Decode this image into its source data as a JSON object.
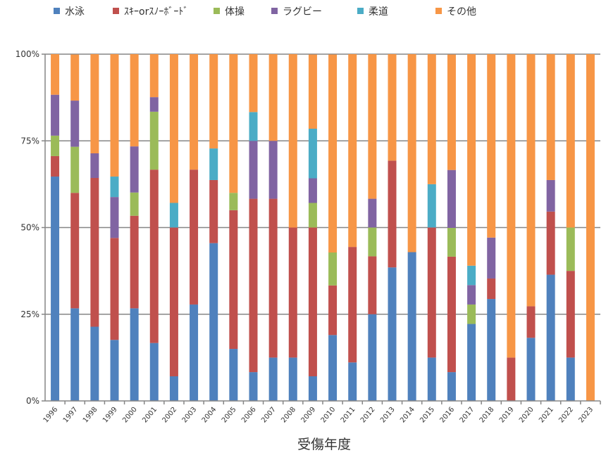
{
  "chart_data": {
    "type": "bar",
    "stacked": true,
    "normalized": true,
    "title": "",
    "xlabel": "受傷年度",
    "ylabel": "",
    "ylim": [
      0,
      100
    ],
    "yticks": [
      "0%",
      "25%",
      "50%",
      "75%",
      "100%"
    ],
    "grid": true,
    "legend_position": "top",
    "categories": [
      "1996",
      "1997",
      "1998",
      "1999",
      "2000",
      "2001",
      "2002",
      "2003",
      "2004",
      "2005",
      "2006",
      "2007",
      "2008",
      "2009",
      "2010",
      "2011",
      "2012",
      "2013",
      "2014",
      "2015",
      "2016",
      "2017",
      "2018",
      "2019",
      "2020",
      "2021",
      "2022",
      "2023"
    ],
    "series": [
      {
        "name": "水泳",
        "color": "#4F81BD",
        "values": [
          64.7,
          26.7,
          21.4,
          17.6,
          26.7,
          16.7,
          7.1,
          27.8,
          45.5,
          15,
          8.3,
          12.5,
          12.5,
          7.1,
          19,
          11.1,
          25,
          38.5,
          42.9,
          12.5,
          8.3,
          22.2,
          29.4,
          0,
          18.2,
          36.4,
          12.5,
          0
        ]
      },
      {
        "name": "ｽｷｰorｽﾉｰﾎﾞｰﾄﾞ",
        "color": "#C0504D",
        "values": [
          5.9,
          33.3,
          42.9,
          29.4,
          26.7,
          50,
          42.9,
          38.9,
          18.2,
          40,
          50,
          45.8,
          37.5,
          42.9,
          14.3,
          33.3,
          16.7,
          30.8,
          0,
          37.5,
          33.3,
          0,
          5.9,
          12.5,
          9.1,
          18.2,
          25,
          0
        ]
      },
      {
        "name": "体操",
        "color": "#9BBB59",
        "values": [
          5.9,
          13.3,
          0,
          0,
          6.7,
          16.7,
          0,
          0,
          0,
          5,
          0,
          0,
          0,
          7.1,
          9.5,
          0,
          8.3,
          0,
          0,
          0,
          8.3,
          5.6,
          0,
          0,
          0,
          0,
          12.5,
          0
        ]
      },
      {
        "name": "ラグビー",
        "color": "#8064A2",
        "values": [
          11.8,
          13.3,
          7.1,
          11.8,
          13.3,
          4.2,
          0,
          0,
          0,
          0,
          16.7,
          16.7,
          0,
          7.1,
          0,
          0,
          8.3,
          0,
          0,
          0,
          16.7,
          5.6,
          11.8,
          0,
          0,
          9.1,
          0,
          0
        ]
      },
      {
        "name": "柔道",
        "color": "#4BACC6",
        "values": [
          0,
          0,
          0,
          5.9,
          0,
          0,
          7.1,
          0,
          9.1,
          0,
          8.3,
          0,
          0,
          14.3,
          0,
          0,
          0,
          0,
          0,
          12.5,
          0,
          5.6,
          0,
          0,
          0,
          0,
          0,
          0
        ]
      },
      {
        "name": "その他",
        "color": "#F79646",
        "values": [
          11.8,
          13.3,
          28.6,
          35.3,
          26.7,
          12.5,
          42.9,
          33.3,
          27.3,
          40,
          16.7,
          25,
          50,
          21.4,
          57.1,
          55.6,
          41.7,
          30.8,
          57.1,
          37.5,
          33.3,
          61.1,
          52.9,
          87.5,
          72.7,
          36.4,
          50,
          100
        ]
      }
    ]
  }
}
